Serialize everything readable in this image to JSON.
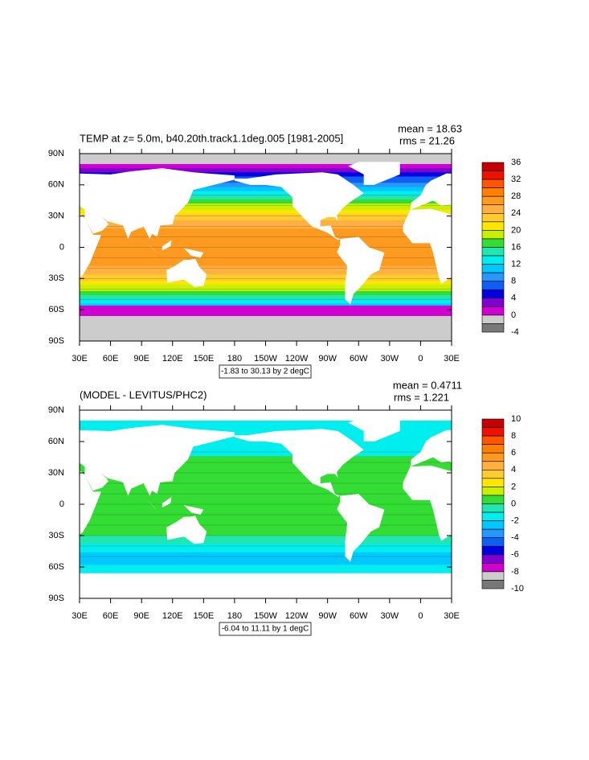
{
  "panels": [
    {
      "title": "TEMP at z=   5.0m, b40.20th.track1.1deg.005 [1981-2005]",
      "mean": "mean = 18.63",
      "rms": "rms = 21.26",
      "info": "-1.83 to 30.13 by 2 degC",
      "lat_labels": [
        "90N",
        "60N",
        "30N",
        "0",
        "30S",
        "60S",
        "90S"
      ],
      "lon_labels": [
        "30E",
        "60E",
        "90E",
        "120E",
        "150E",
        "180",
        "150W",
        "120W",
        "90W",
        "60W",
        "30W",
        "0",
        "30E"
      ],
      "colorbar": {
        "labels": [
          36,
          32,
          28,
          24,
          20,
          16,
          12,
          8,
          4,
          0,
          -4
        ],
        "colors": [
          "#c40000",
          "#ee1100",
          "#ff5500",
          "#ff8000",
          "#ff9a20",
          "#ffb040",
          "#ffcc30",
          "#ffe600",
          "#c8f000",
          "#33dd33",
          "#22e6b0",
          "#00eeee",
          "#00c8ff",
          "#2896ff",
          "#0f5ff5",
          "#0000e0",
          "#8000d0",
          "#d000d0",
          "#cccccc",
          "#787878"
        ]
      }
    },
    {
      "title": "(MODEL - LEVITUS/PHC2)",
      "mean": "mean = 0.4711",
      "rms": "rms = 1.221",
      "info": "-6.04 to 11.11 by 1 degC",
      "lat_labels": [
        "90N",
        "60N",
        "30N",
        "0",
        "30S",
        "60S",
        "90S"
      ],
      "lon_labels": [
        "30E",
        "60E",
        "90E",
        "120E",
        "150E",
        "180",
        "150W",
        "120W",
        "90W",
        "60W",
        "30W",
        "0",
        "30E"
      ],
      "colorbar": {
        "labels": [
          10,
          8,
          6,
          4,
          2,
          0,
          -2,
          -4,
          -6,
          -8,
          -10
        ],
        "colors": [
          "#c40000",
          "#ee1100",
          "#ff5500",
          "#ff8000",
          "#ff9a20",
          "#ffb040",
          "#ffcc30",
          "#ffe600",
          "#c8f000",
          "#33dd33",
          "#22e6b0",
          "#00eeee",
          "#00c8ff",
          "#2896ff",
          "#0f5ff5",
          "#0000e0",
          "#8000d0",
          "#d000d0",
          "#cccccc",
          "#787878"
        ]
      }
    }
  ]
}
